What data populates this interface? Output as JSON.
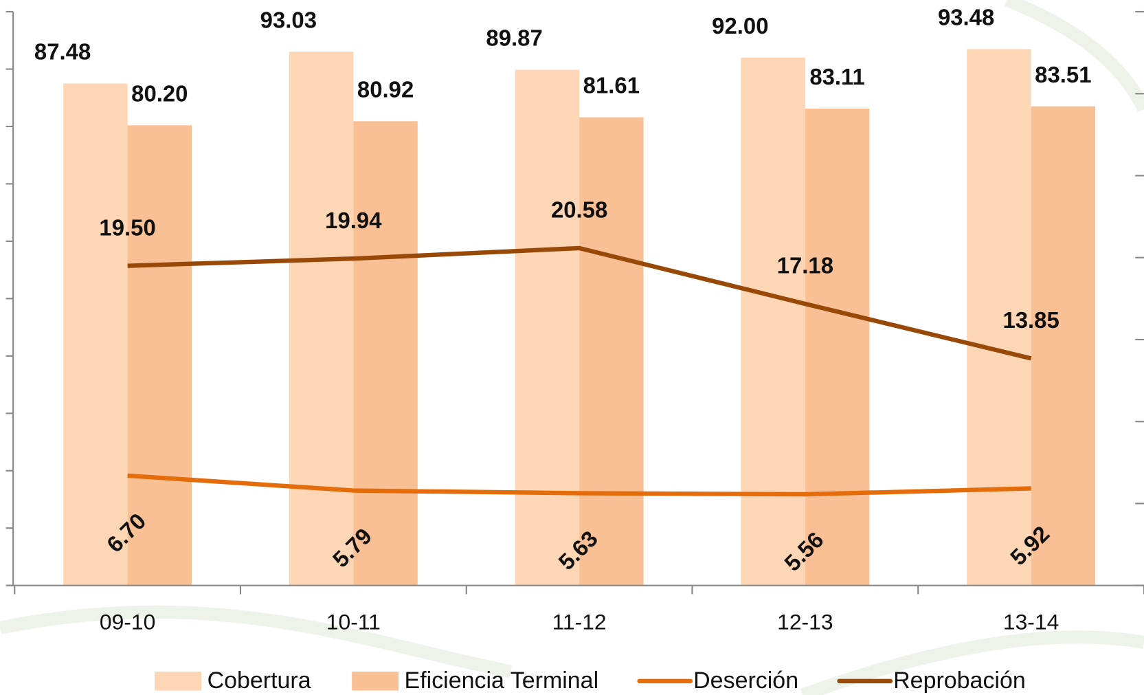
{
  "chart_data": {
    "type": "bar_line",
    "categories": [
      "09-10",
      "10-11",
      "11-12",
      "12-13",
      "13-14"
    ],
    "series": [
      {
        "name": "Cobertura",
        "color": "#fdd6b6",
        "kind": "bar",
        "values": [
          87.48,
          93.03,
          89.87,
          92.0,
          93.48
        ],
        "value_labels": [
          "87.48",
          "93.03",
          "89.87",
          "92.00",
          "93.48"
        ]
      },
      {
        "name": "Eficiencia Terminal",
        "color": "#f9c095",
        "kind": "bar",
        "values": [
          80.2,
          80.92,
          81.61,
          83.11,
          83.51
        ],
        "value_labels": [
          "80.20",
          "80.92",
          "81.61",
          "83.11",
          "83.51"
        ]
      },
      {
        "name": "Deserción",
        "color": "#e46c0a",
        "kind": "line",
        "axis": "y2",
        "values": [
          6.7,
          5.79,
          5.63,
          5.56,
          5.92
        ],
        "value_labels": [
          "6.70",
          "5.79",
          "5.63",
          "5.56",
          "5.92"
        ]
      },
      {
        "name": "Reprobación",
        "color": "#984807",
        "kind": "line",
        "axis": "y2",
        "values": [
          19.5,
          19.94,
          20.58,
          17.18,
          13.85
        ],
        "value_labels": [
          "19.50",
          "19.94",
          "20.58",
          "17.18",
          "13.85"
        ]
      }
    ],
    "ylim": [
      0,
      100
    ],
    "yticks": [
      0,
      10,
      20,
      30,
      40,
      50,
      60,
      70,
      80,
      90,
      100
    ],
    "y2lim": [
      0,
      35
    ],
    "y2ticks": [
      0,
      5,
      10,
      15,
      20,
      25,
      30,
      35
    ],
    "legend": "bottom"
  }
}
